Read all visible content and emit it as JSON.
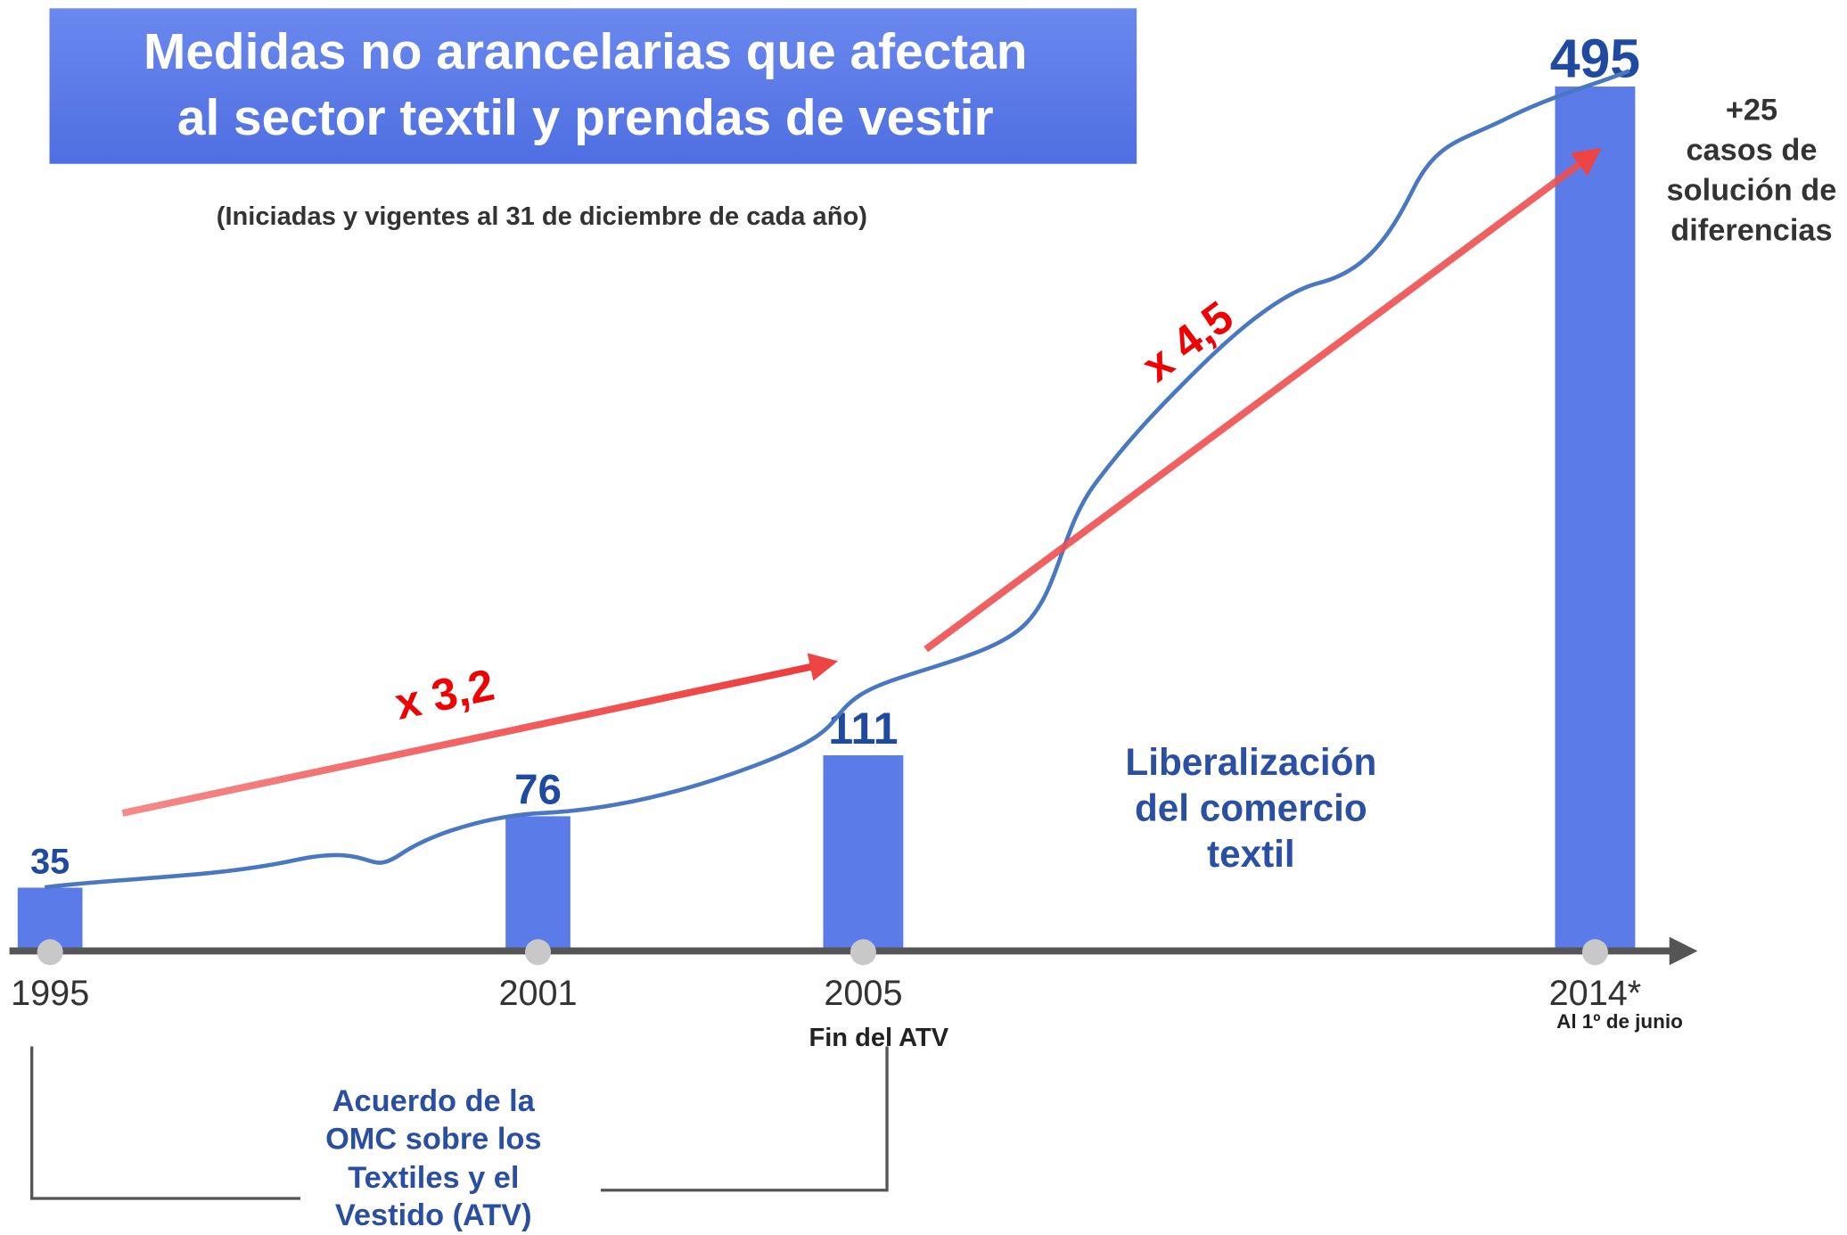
{
  "chart_data": {
    "type": "bar",
    "title": [
      "Medidas no arancelarias que afectan",
      "al sector textil y prendas de vestir"
    ],
    "subtitle": "(Iniciadas y vigentes al 31 de diciembre de cada año)",
    "x": [
      1995,
      2001,
      2005,
      2014
    ],
    "values": [
      35,
      76,
      111,
      495
    ],
    "color": "#5b7be8",
    "xlim": [
      1994.5,
      2015.2
    ],
    "xticks": [
      1995,
      2001,
      2005,
      {
        "value": 2014,
        "label": "2014*"
      }
    ],
    "ylim": [
      0,
      500
    ],
    "annotations": {
      "growth_1": "x 3,2",
      "growth_2": "x 4,5",
      "disputes": [
        "+25",
        "casos de",
        "solución de",
        "diferencias"
      ],
      "liberalization": [
        "Liberalización",
        "del comercio",
        "textil"
      ],
      "end_atv": "Fin del ATV",
      "date_note": "Al 1º de junio",
      "atv": [
        "Acuerdo de la",
        "OMC sobre los",
        "Textiles y el",
        "Vestido (ATV)"
      ]
    }
  }
}
